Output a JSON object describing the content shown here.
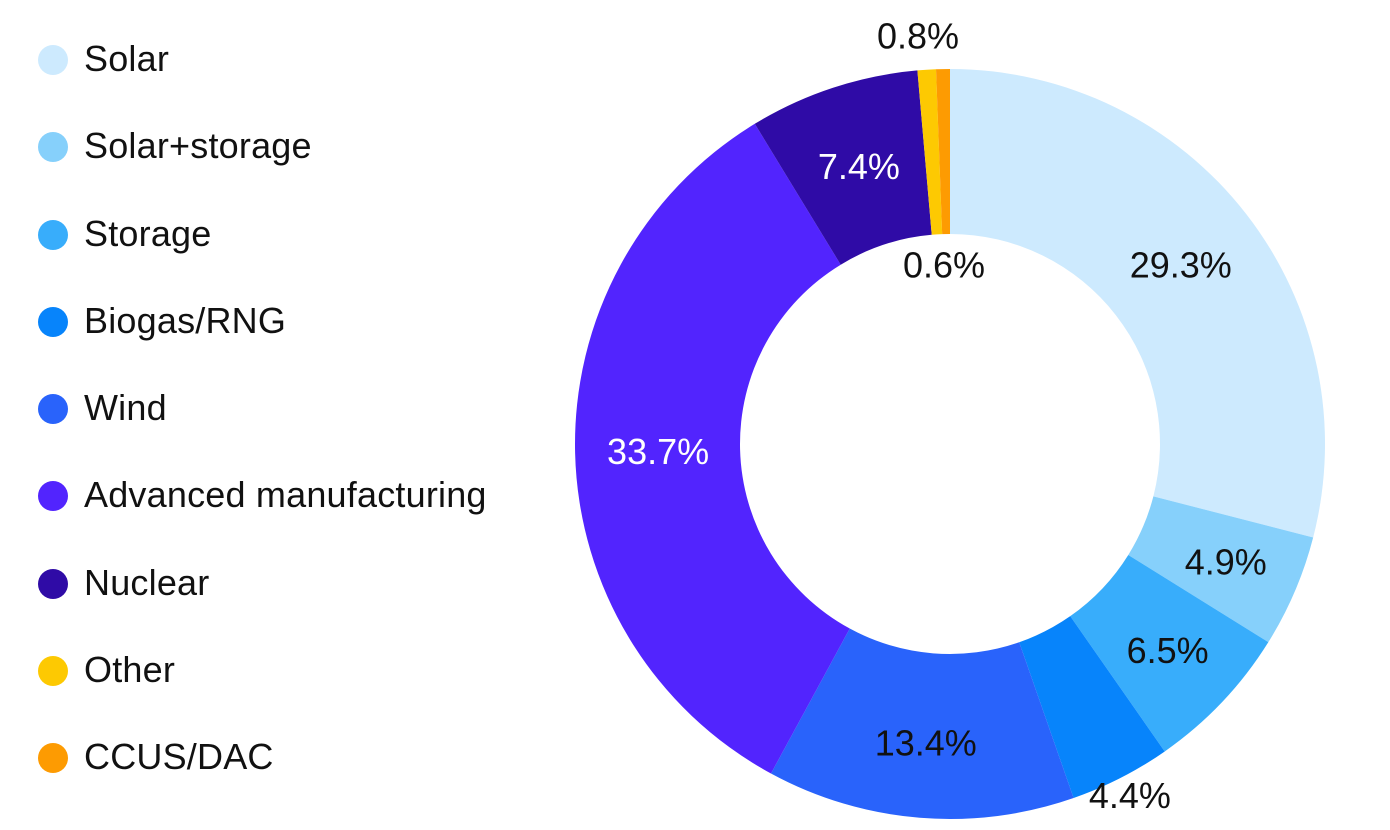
{
  "chart_data": {
    "type": "pie",
    "style": "donut",
    "title": "",
    "legend_placement": "left",
    "categories": [
      "Solar",
      "Solar+storage",
      "Storage",
      "Biogas/RNG",
      "Wind",
      "Advanced manufacturing",
      "Nuclear",
      "Other",
      "CCUS/DAC"
    ],
    "values": [
      29.3,
      4.9,
      6.5,
      4.4,
      13.4,
      33.7,
      7.4,
      0.8,
      0.6
    ],
    "labels": [
      "29.3%",
      "4.9%",
      "6.5%",
      "4.4%",
      "13.4%",
      "33.7%",
      "7.4%",
      "0.8%",
      "0.6%"
    ],
    "colors": [
      "#cdeafe",
      "#86d0fb",
      "#38adfb",
      "#0784fb",
      "#2963fb",
      "#5224fe",
      "#2f0ba6",
      "#fdc902",
      "#fd9b02"
    ],
    "label_colors": [
      "#111111",
      "#111111",
      "#111111",
      "#111111",
      "#111111",
      "#ffffff",
      "#ffffff",
      "#111111",
      "#111111"
    ]
  }
}
